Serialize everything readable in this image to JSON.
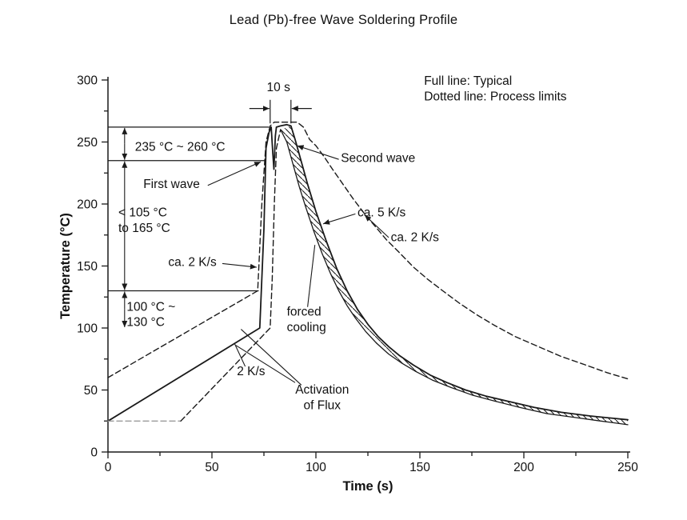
{
  "title": "Lead (Pb)-free Wave Soldering Profile",
  "chart_data": {
    "type": "line",
    "title": "Lead (Pb)-free Wave Soldering Profile",
    "xlabel": "Time (s)",
    "ylabel": "Temperature (°C)",
    "xlim": [
      0,
      250
    ],
    "ylim": [
      0,
      300
    ],
    "xticks": [
      0,
      50,
      100,
      150,
      200,
      250
    ],
    "yticks": [
      0,
      50,
      100,
      150,
      200,
      250,
      300
    ],
    "minor_tick_step": 25,
    "grid": false,
    "colors": {
      "line": "#1a1a1a",
      "text": "#111111",
      "gray": "#9a9a9a"
    },
    "legend_note": {
      "x": 152,
      "y": 296,
      "lines": [
        "Full line: Typical",
        "Dotted line: Process limits"
      ]
    },
    "series": [
      {
        "name": "typical",
        "label": "Full line: Typical",
        "style": "solid",
        "color": "#1a1a1a",
        "width": 1.8,
        "points": [
          [
            0,
            25
          ],
          [
            73,
            100
          ],
          [
            75,
            180
          ],
          [
            76,
            245
          ],
          [
            77.5,
            258
          ],
          [
            78.5,
            262
          ],
          [
            79.3,
            240
          ],
          [
            79.8,
            228
          ],
          [
            80.5,
            255
          ],
          [
            81,
            262
          ],
          [
            83,
            263
          ],
          [
            86,
            264
          ],
          [
            88,
            263
          ],
          [
            90,
            252
          ],
          [
            93,
            234
          ],
          [
            96,
            216
          ],
          [
            100,
            194
          ],
          [
            105,
            170
          ],
          [
            110,
            148
          ],
          [
            115,
            130
          ],
          [
            120,
            115
          ],
          [
            125,
            103
          ],
          [
            130,
            93
          ],
          [
            135,
            85
          ],
          [
            140,
            78
          ],
          [
            147,
            70
          ],
          [
            155,
            62
          ],
          [
            163,
            56
          ],
          [
            172,
            50
          ],
          [
            182,
            45
          ],
          [
            192,
            41
          ],
          [
            205,
            36
          ],
          [
            218,
            32
          ],
          [
            232,
            29
          ],
          [
            250,
            26
          ]
        ]
      },
      {
        "name": "upper-process-limit",
        "label": "Dotted line: Process limits",
        "style": "dashed",
        "color": "#1a1a1a",
        "width": 1.4,
        "points": [
          [
            0,
            60
          ],
          [
            72,
            130
          ],
          [
            74,
            200
          ],
          [
            76,
            250
          ],
          [
            78,
            263
          ],
          [
            80,
            266
          ],
          [
            85,
            266
          ],
          [
            91,
            266
          ],
          [
            94,
            262
          ],
          [
            97,
            252
          ],
          [
            100,
            247
          ],
          [
            104,
            238
          ],
          [
            108,
            228
          ],
          [
            113,
            216
          ],
          [
            118,
            204
          ],
          [
            123,
            193
          ],
          [
            128,
            183
          ],
          [
            134,
            171
          ],
          [
            140,
            161
          ],
          [
            147,
            149
          ],
          [
            154,
            139
          ],
          [
            161,
            130
          ],
          [
            169,
            120
          ],
          [
            177,
            111
          ],
          [
            186,
            102
          ],
          [
            196,
            93
          ],
          [
            207,
            85
          ],
          [
            218,
            77
          ],
          [
            230,
            70
          ],
          [
            240,
            64
          ],
          [
            250,
            59
          ]
        ]
      },
      {
        "name": "lower-process-limit-start",
        "style": "dashed",
        "color": "#9a9a9a",
        "width": 1.4,
        "points": [
          [
            0,
            25
          ],
          [
            35,
            25
          ]
        ]
      },
      {
        "name": "lower-process-limit-rise",
        "style": "dashed",
        "color": "#1a1a1a",
        "width": 1.4,
        "points": [
          [
            35,
            25
          ],
          [
            78,
            100
          ],
          [
            79,
            140
          ],
          [
            80,
            200
          ],
          [
            81,
            245
          ],
          [
            83,
            260
          ]
        ]
      },
      {
        "name": "forced-cooling-lower-edge",
        "style": "solid",
        "color": "#1a1a1a",
        "width": 1.3,
        "points": [
          [
            83,
            260
          ],
          [
            86,
            250
          ],
          [
            89,
            232
          ],
          [
            92,
            214
          ],
          [
            95,
            198
          ],
          [
            99,
            178
          ],
          [
            103,
            160
          ],
          [
            107,
            144
          ],
          [
            111,
            130
          ],
          [
            115,
            118
          ],
          [
            119,
            108
          ],
          [
            124,
            97
          ],
          [
            129,
            88
          ],
          [
            135,
            79
          ],
          [
            141,
            72
          ],
          [
            148,
            65
          ],
          [
            156,
            58
          ],
          [
            165,
            52
          ],
          [
            175,
            46
          ],
          [
            186,
            41
          ],
          [
            198,
            36
          ],
          [
            211,
            31
          ],
          [
            224,
            28
          ],
          [
            237,
            25
          ],
          [
            250,
            22
          ]
        ]
      }
    ],
    "hatched_band": {
      "name": "forced-cooling-band",
      "upper_series": "typical",
      "upper_from_t": 88,
      "lower_series": "forced-cooling-lower-edge"
    },
    "reference_lines": [
      {
        "y": 262,
        "t0": 0,
        "t1": 77.5
      },
      {
        "y": 235,
        "t0": 0,
        "t1": 75.5
      },
      {
        "y": 130,
        "t0": 0,
        "t1": 72.5
      }
    ],
    "range_arrows": [
      {
        "x": 8,
        "from": 235,
        "to": 262
      },
      {
        "x": 8,
        "from": 130,
        "to": 235
      },
      {
        "x": 8,
        "from": 100,
        "to": 130
      }
    ],
    "duration_marker": {
      "label": "10 s",
      "t1": 78,
      "t2": 88,
      "tick_top": 284,
      "tick_bottom": 265,
      "arrow_y": 277,
      "tail_t": 10,
      "label_t": 82,
      "label_y": 291
    },
    "annotations": [
      {
        "name": "range-235-260",
        "lines": [
          "235 °C ~ 260 °C"
        ],
        "x": 13,
        "y": 243,
        "anchor": "start",
        "leaders": []
      },
      {
        "name": "first-wave",
        "lines": [
          "First wave"
        ],
        "x": 17,
        "y": 213,
        "anchor": "start",
        "leaders": [
          {
            "from": [
              48,
              215
            ],
            "to": [
              73.5,
              234
            ],
            "arrow": true
          }
        ]
      },
      {
        "name": "second-wave",
        "lines": [
          "Second wave"
        ],
        "x": 112,
        "y": 234,
        "anchor": "start",
        "leaders": [
          {
            "from": [
              111,
              236
            ],
            "to": [
              91,
              247
            ],
            "arrow": true
          }
        ]
      },
      {
        "name": "rise-range",
        "lines": [
          "< 105 °C",
          "to 165 °C"
        ],
        "x": 5,
        "y": 190,
        "anchor": "start",
        "leaders": []
      },
      {
        "name": "ramp-rate-wave",
        "lines": [
          "ca. 2 K/s"
        ],
        "x": 29,
        "y": 150,
        "anchor": "start",
        "leaders": [
          {
            "from": [
              55,
              152
            ],
            "to": [
              71.5,
              149
            ],
            "arrow": true
          }
        ]
      },
      {
        "name": "cooling-rate-5",
        "lines": [
          "ca. 5 K/s"
        ],
        "x": 120,
        "y": 190,
        "anchor": "start",
        "leaders": [
          {
            "from": [
              119,
              192
            ],
            "to": [
              103.5,
              184
            ],
            "arrow": true
          }
        ]
      },
      {
        "name": "cooling-rate-2",
        "lines": [
          "ca. 2 K/s"
        ],
        "x": 136,
        "y": 170,
        "anchor": "start",
        "leaders": [
          {
            "from": [
              135,
              173
            ],
            "to": [
              123.5,
              191
            ],
            "arrow": true
          }
        ]
      },
      {
        "name": "preheat-range",
        "lines": [
          "100 °C ~",
          "130 °C"
        ],
        "x": 9,
        "y": 114,
        "anchor": "start",
        "leaders": []
      },
      {
        "name": "forced-cooling",
        "lines": [
          "forced",
          "cooling"
        ],
        "x": 86,
        "y": 110,
        "anchor": "start",
        "leaders": [
          {
            "from": [
              96,
              117
            ],
            "to": [
              99.5,
              167
            ],
            "arrow": false
          }
        ]
      },
      {
        "name": "preheat-rate",
        "lines": [
          "2 K/s"
        ],
        "x": 62,
        "y": 62,
        "anchor": "start",
        "leaders": [
          {
            "from": [
              66,
              69
            ],
            "to": [
              61,
              87
            ],
            "arrow": false
          }
        ]
      },
      {
        "name": "activation-of-flux",
        "lines": [
          "Activation",
          "of Flux"
        ],
        "x": 103,
        "y": 47,
        "anchor": "middle",
        "leaders": [
          {
            "from": [
              93,
              54
            ],
            "to": [
              64,
              99
            ],
            "arrow": false
          },
          {
            "from": [
              90,
              56
            ],
            "to": [
              61.5,
              86
            ],
            "arrow": false
          }
        ]
      }
    ]
  }
}
